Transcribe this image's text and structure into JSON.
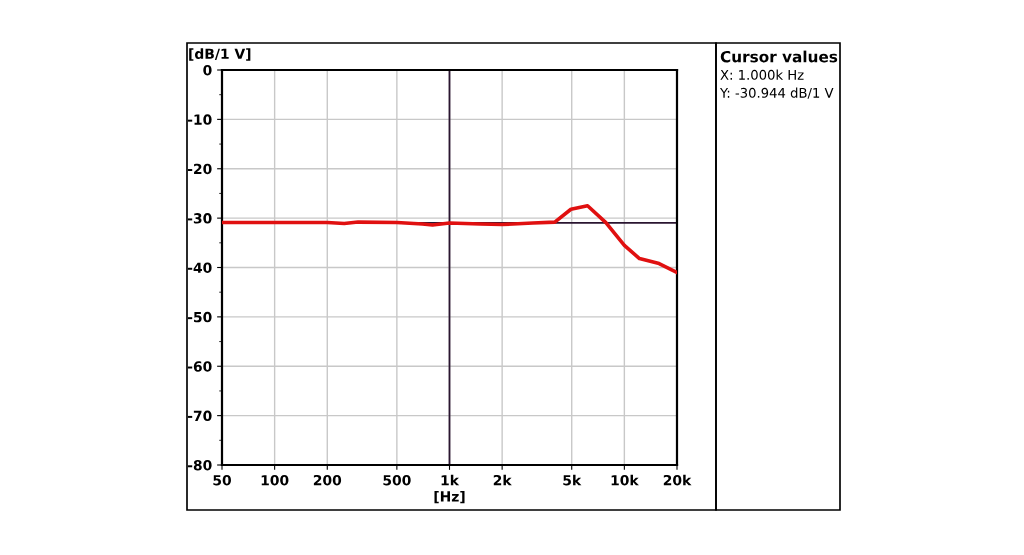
{
  "chart_data": {
    "type": "line",
    "xlabel": "[Hz]",
    "ylabel": "[dB/1 V]",
    "log": "x",
    "xlim": [
      50,
      20000
    ],
    "ylim": [
      -80,
      0
    ],
    "xticks": [
      50,
      100,
      200,
      500,
      {
        "value": 1000,
        "label": "1k"
      },
      {
        "value": 2000,
        "label": "2k"
      },
      {
        "value": 5000,
        "label": "5k"
      },
      {
        "value": 10000,
        "label": "10k"
      },
      {
        "value": 20000,
        "label": "20k"
      }
    ],
    "yticks": [
      -80,
      -70,
      -60,
      -50,
      -40,
      -30,
      -20,
      -10,
      0
    ],
    "grid": true,
    "legend": false,
    "marker": "none",
    "line_style": "solid",
    "x": [
      50,
      100,
      200,
      250,
      300,
      500,
      700,
      800,
      1000,
      1500,
      2000,
      3000,
      4000,
      4950,
      6160,
      7840,
      10000,
      12200,
      15800,
      20000
    ],
    "series": [
      {
        "color": "#e01010",
        "values": [
          -30.9,
          -30.9,
          -30.9,
          -31.1,
          -30.8,
          -30.9,
          -31.2,
          -31.4,
          -31.0,
          -31.2,
          -31.3,
          -31.0,
          -30.8,
          -28.2,
          -27.5,
          -30.9,
          -35.5,
          -38.2,
          -39.2,
          -41.0
        ]
      }
    ],
    "ref_lines": [
      {
        "axis": "x",
        "value": 1000,
        "color": "#2a1530",
        "line_style": "solid"
      },
      {
        "axis": "y",
        "value": -30.944,
        "color": "#2a1530",
        "line_style": "solid"
      }
    ],
    "annotations": [
      "Cursor values",
      "X: 1.000k Hz",
      "Y: -30.944 dB/1 V"
    ]
  }
}
